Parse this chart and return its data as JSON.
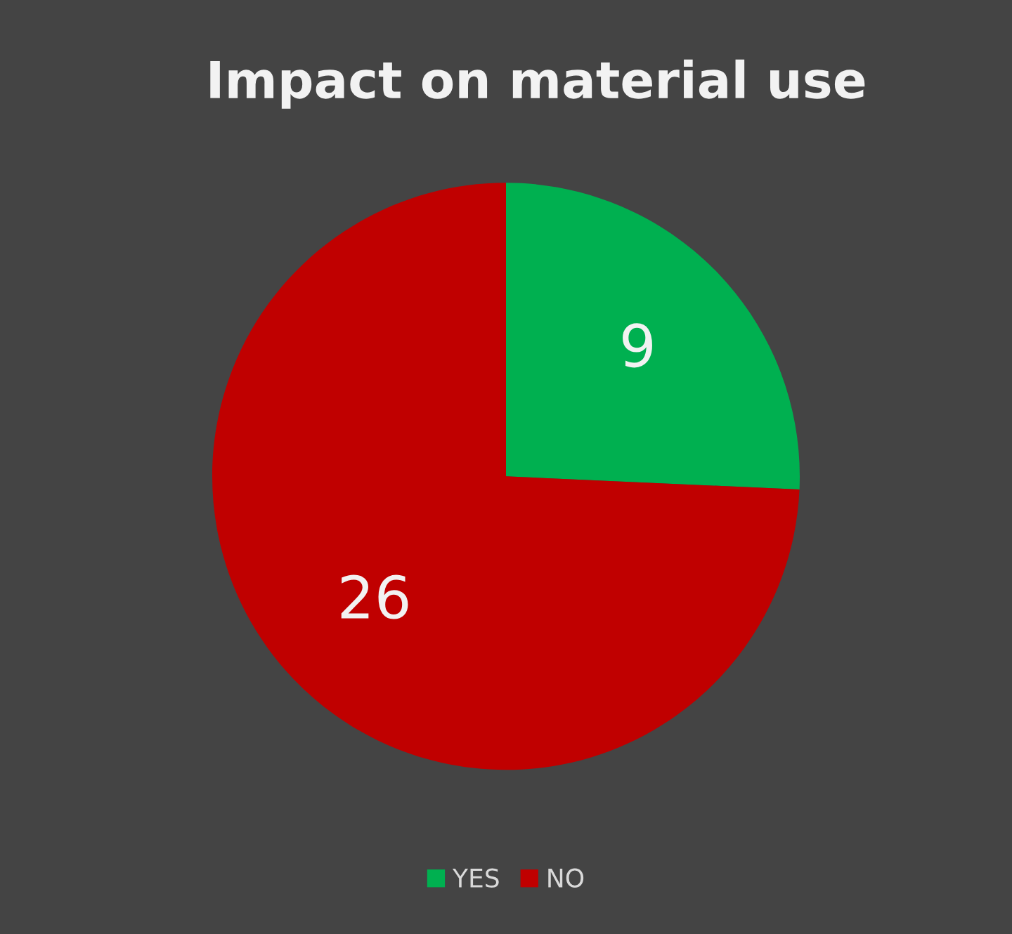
{
  "chart_data": {
    "type": "pie",
    "title": "Impact on material use",
    "categories": [
      "YES",
      "NO"
    ],
    "values": [
      9,
      26
    ],
    "colors": [
      "#00b050",
      "#c00000"
    ],
    "data_labels": true,
    "legend": "bottom"
  }
}
